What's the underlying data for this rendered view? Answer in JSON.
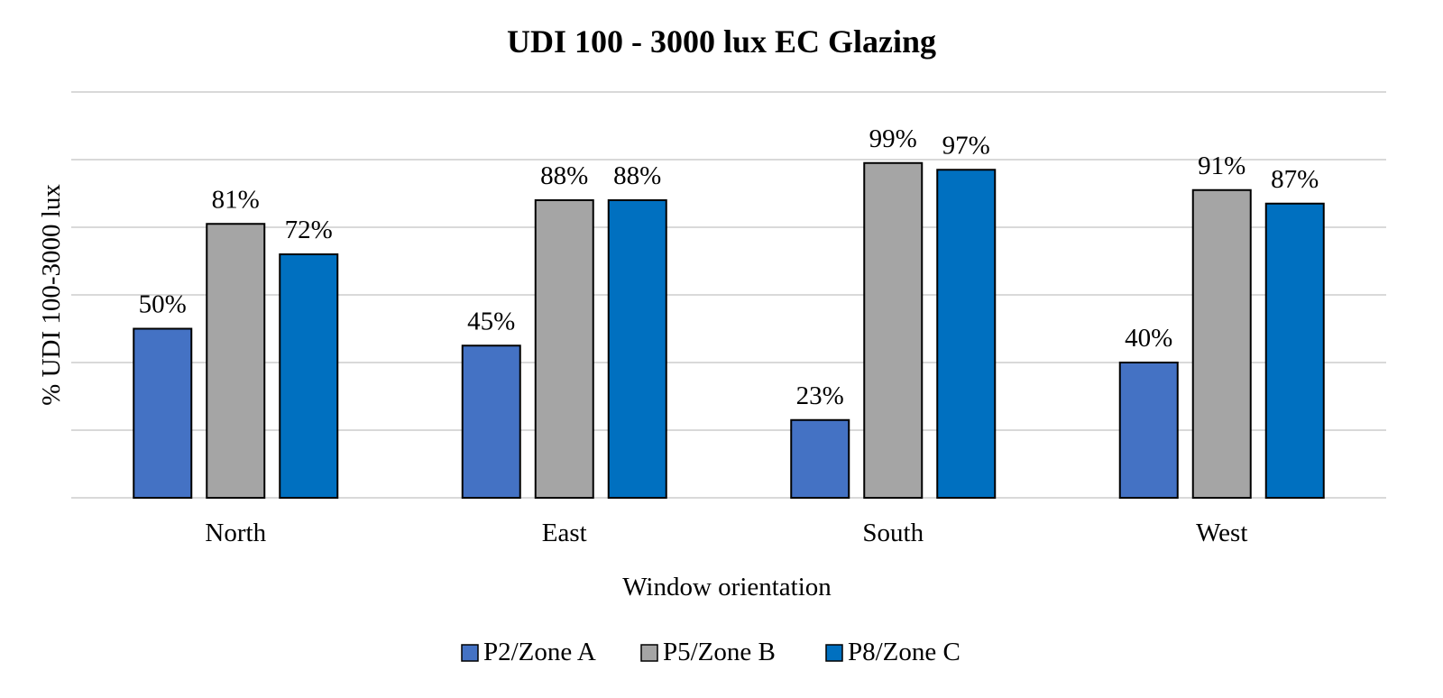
{
  "chart_data": {
    "type": "bar",
    "title": "UDI 100 - 3000 lux EC Glazing",
    "xlabel": "Window orientation",
    "ylabel": "% UDI 100-3000 lux",
    "categories": [
      "North",
      "East",
      "South",
      "West"
    ],
    "ylim": [
      0,
      120
    ],
    "grid": true,
    "legend_position": "bottom",
    "value_suffix": "%",
    "series": [
      {
        "name": "P2/Zone A",
        "color": "#4472c4",
        "values": [
          50,
          45,
          23,
          40
        ]
      },
      {
        "name": "P5/Zone B",
        "color": "#a5a5a5",
        "values": [
          81,
          88,
          99,
          91
        ]
      },
      {
        "name": "P8/Zone C",
        "color": "#0070c0",
        "values": [
          72,
          88,
          97,
          87
        ]
      }
    ]
  }
}
